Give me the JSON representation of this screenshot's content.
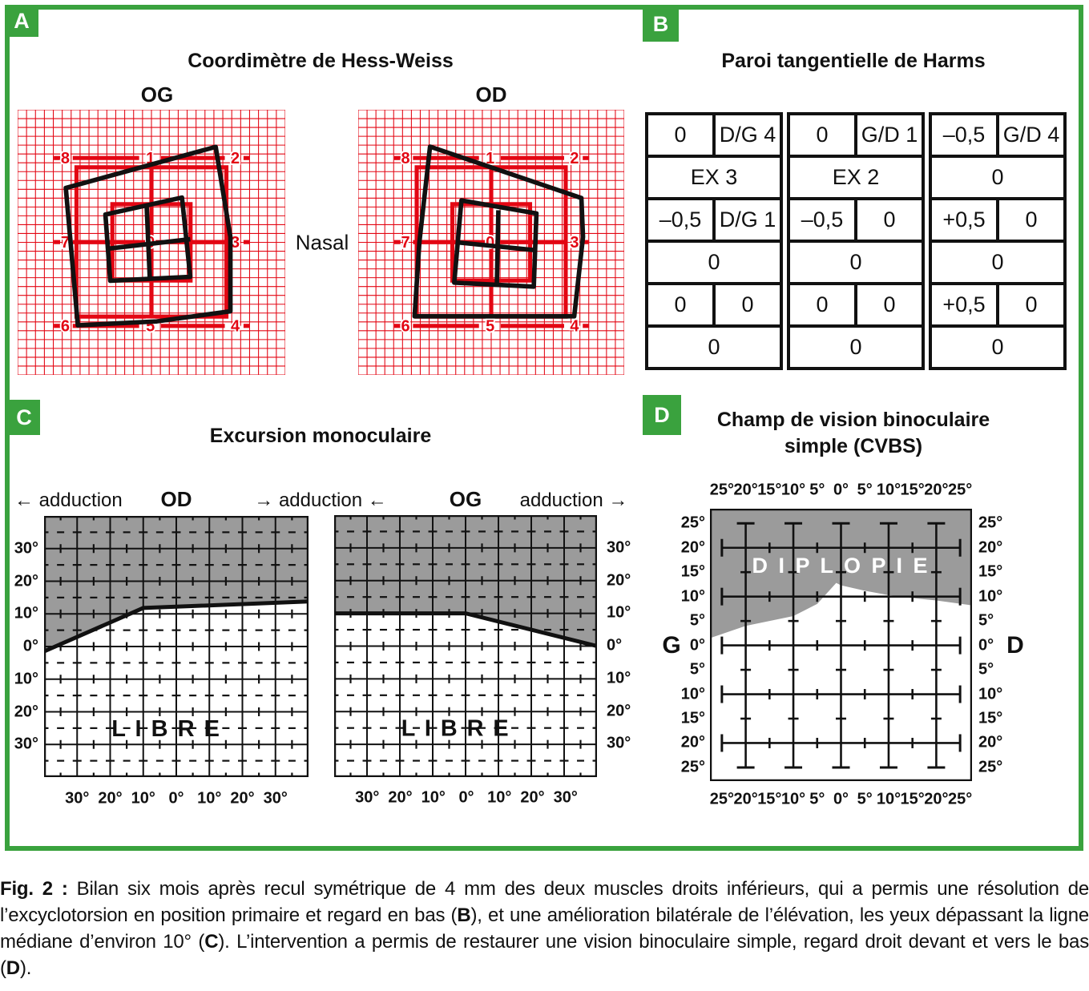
{
  "colors": {
    "green": "#3aa23e",
    "red": "#e30613",
    "gray": "#9b9b9b",
    "black": "#111111"
  },
  "panels": {
    "A": {
      "badge": "A",
      "title": "Coordimètre de Hess-Weiss",
      "left_chart_label": "OG",
      "right_chart_label": "OD",
      "center_label": "Nasal"
    },
    "B": {
      "badge": "B",
      "title": "Paroi tangentielle de Harms"
    },
    "C": {
      "badge": "C",
      "title": "Excursion monoculaire",
      "left_eye": "OD",
      "right_eye": "OG",
      "left_dir": "← adduction",
      "mid_dir": "→ adduction ←",
      "right_dir": "adduction →",
      "free_label": "L I B R E"
    },
    "D": {
      "badge": "D",
      "title_line1": "Champ de vision binoculaire",
      "title_line2": "simple (CVBS)",
      "left_side": "G",
      "right_side": "D",
      "diplopia_label": "D I P L O P I E"
    }
  },
  "harms_table": {
    "groups": [
      {
        "rows": [
          [
            "0",
            "D/G 4"
          ],
          [
            "EX 3"
          ],
          [
            "–0,5",
            "D/G 1"
          ],
          [
            "0"
          ],
          [
            "0",
            "0"
          ],
          [
            "0"
          ]
        ]
      },
      {
        "rows": [
          [
            "0",
            "G/D 1"
          ],
          [
            "EX 2"
          ],
          [
            "–0,5",
            "0"
          ],
          [
            "0"
          ],
          [
            "0",
            "0"
          ],
          [
            "0"
          ]
        ]
      },
      {
        "rows": [
          [
            "–0,5",
            "G/D 4"
          ],
          [
            "0"
          ],
          [
            "+0,5",
            "0"
          ],
          [
            "0"
          ],
          [
            "+0,5",
            "0"
          ],
          [
            "0"
          ]
        ]
      }
    ]
  },
  "chart_data": [
    {
      "id": "hess_og",
      "type": "hess-grid",
      "eye": "OG",
      "numbers": [
        [
          "8",
          "1",
          "2"
        ],
        [
          "7",
          "0",
          "3"
        ],
        [
          "6",
          "5",
          "4"
        ]
      ],
      "outer": [
        [
          18,
          29.5
        ],
        [
          74,
          14
        ],
        [
          79.5,
          48
        ],
        [
          79.5,
          76
        ],
        [
          52,
          79.8
        ],
        [
          22.5,
          81.3
        ]
      ],
      "inner": [
        [
          32.8,
          39.5
        ],
        [
          61.4,
          33.1
        ],
        [
          64.5,
          63
        ],
        [
          34.6,
          64.5
        ]
      ],
      "cross_h": [
        [
          33.7,
          52.4
        ],
        [
          64.5,
          48.8
        ]
      ],
      "cross_v": [
        [
          48.2,
          36.1
        ],
        [
          49.4,
          63.9
        ]
      ]
    },
    {
      "id": "hess_od",
      "type": "hess-grid",
      "eye": "OD",
      "numbers": [
        [
          "8",
          "1",
          "2"
        ],
        [
          "7",
          "0",
          "3"
        ],
        [
          "6",
          "5",
          "4"
        ]
      ],
      "outer": [
        [
          27,
          13.9
        ],
        [
          83.9,
          33.3
        ],
        [
          84.5,
          48
        ],
        [
          81.2,
          77.9
        ],
        [
          21.2,
          77.9
        ],
        [
          23,
          50
        ]
      ],
      "inner": [
        [
          38.8,
          34.2
        ],
        [
          67,
          39.1
        ],
        [
          66,
          66.7
        ],
        [
          36.1,
          65.2
        ]
      ],
      "cross_h": [
        [
          37,
          50
        ],
        [
          67,
          53
        ]
      ],
      "cross_v": [
        [
          52.7,
          37.9
        ],
        [
          52.1,
          66.7
        ]
      ]
    },
    {
      "id": "excursion_od",
      "type": "area",
      "eye": "OD",
      "x_range": [
        -40,
        40
      ],
      "y_range": [
        -40,
        40
      ],
      "x_tick_values": [
        -30,
        -20,
        -10,
        0,
        10,
        20,
        30
      ],
      "x_tick_labels": [
        "30°",
        "20°",
        "10°",
        "0°",
        "10°",
        "20°",
        "30°"
      ],
      "y_tick_values": [
        30,
        20,
        10,
        0,
        -10,
        -20,
        -30
      ],
      "y_tick_labels": [
        "30°",
        "20°",
        "10°",
        "0°",
        "10°",
        "20°",
        "30°"
      ],
      "boundary": [
        [
          -40,
          -1.5
        ],
        [
          -10,
          11.8
        ],
        [
          40,
          13.8
        ]
      ],
      "shaded_region": "above",
      "free_label": "L I B R E",
      "free_label_pos": [
        -3,
        -25
      ]
    },
    {
      "id": "excursion_og",
      "type": "area",
      "eye": "OG",
      "x_range": [
        -40,
        40
      ],
      "y_range": [
        -40,
        40
      ],
      "x_tick_values": [
        -30,
        -20,
        -10,
        0,
        10,
        20,
        30
      ],
      "x_tick_labels": [
        "30°",
        "20°",
        "10°",
        "0°",
        "10°",
        "20°",
        "30°"
      ],
      "y_tick_values": [
        30,
        20,
        10,
        0,
        -10,
        -20,
        -30
      ],
      "y_tick_labels": [
        "30°",
        "20°",
        "10°",
        "0°",
        "10°",
        "20°",
        "30°"
      ],
      "boundary": [
        [
          -40,
          10
        ],
        [
          0,
          10
        ],
        [
          40,
          0
        ]
      ],
      "shaded_region": "above",
      "free_label": "L I B R E",
      "free_label_pos": [
        -3,
        -25
      ]
    },
    {
      "id": "cvbs",
      "type": "area",
      "x_range": [
        -27.5,
        27.5
      ],
      "y_range": [
        -27.8,
        28
      ],
      "grid_line_values": [
        -20,
        -10,
        0,
        10,
        20
      ],
      "tick_step": 5,
      "x_tick_values": [
        -25,
        -20,
        -15,
        -10,
        -5,
        0,
        5,
        10,
        15,
        20,
        25
      ],
      "x_tick_labels": [
        "25°",
        "20°",
        "15°",
        "10°",
        "5°",
        "0°",
        "5°",
        "10°",
        "15°",
        "20°",
        "25°"
      ],
      "y_tick_values": [
        25,
        20,
        15,
        10,
        5,
        0,
        -5,
        -10,
        -15,
        -20,
        -25
      ],
      "y_tick_labels": [
        "25°",
        "20°",
        "15°",
        "10°",
        "5°",
        "0°",
        "5°",
        "10°",
        "15°",
        "20°",
        "25°"
      ],
      "boundary": [
        [
          -27.5,
          1.5
        ],
        [
          -20,
          4
        ],
        [
          -15,
          5
        ],
        [
          -10,
          6
        ],
        [
          -5,
          8.5
        ],
        [
          -1,
          12.8
        ],
        [
          0,
          12.3
        ],
        [
          5,
          11.2
        ],
        [
          10,
          10.3
        ],
        [
          15,
          9.7
        ],
        [
          20,
          9.2
        ],
        [
          27.5,
          8.2
        ]
      ],
      "shaded_region": "above",
      "diplopia_label_pos": [
        0,
        16.5
      ]
    }
  ],
  "caption": {
    "segments": [
      {
        "b": true,
        "t": "Fig. 2 : "
      },
      {
        "b": false,
        "t": "Bilan six mois après recul symétrique de 4 mm des deux muscles droits inférieurs, qui a permis une résolution de l’excyclotorsion en position primaire et regard en bas ("
      },
      {
        "b": true,
        "t": "B"
      },
      {
        "b": false,
        "t": "), et une amélioration bilatérale de l’élévation, les yeux dépassant la ligne médiane d’environ 10° ("
      },
      {
        "b": true,
        "t": "C"
      },
      {
        "b": false,
        "t": "). L’intervention a permis de restaurer une vision binoculaire simple, regard droit devant et vers le bas ("
      },
      {
        "b": true,
        "t": "D"
      },
      {
        "b": false,
        "t": ")."
      }
    ]
  }
}
